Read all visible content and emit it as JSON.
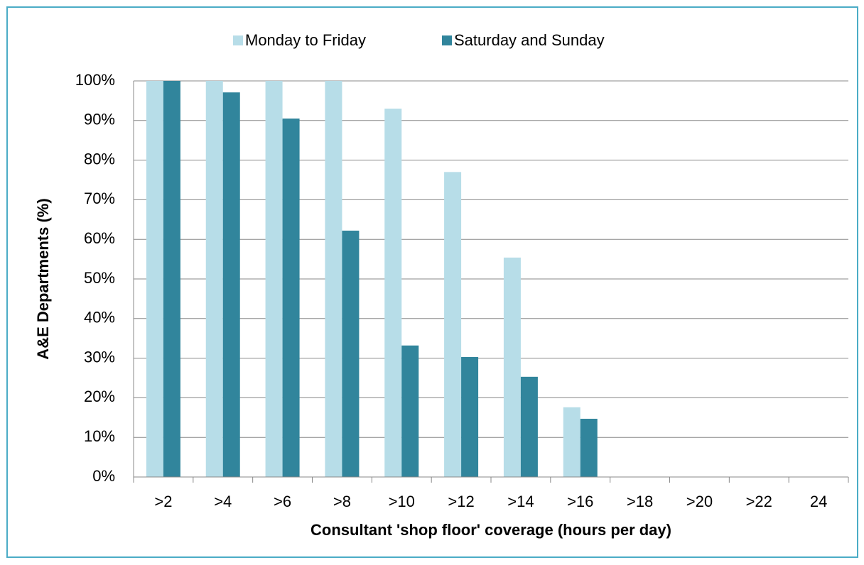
{
  "chart_data": {
    "type": "bar",
    "xlabel": "Consultant 'shop floor' coverage (hours per day)",
    "ylabel": "A&E Departments (%)",
    "categories": [
      ">2",
      ">4",
      ">6",
      ">8",
      ">10",
      ">12",
      ">14",
      ">16",
      ">18",
      ">20",
      ">22",
      "24"
    ],
    "series": [
      {
        "name": "Monday to Friday",
        "color": "#b7dde8",
        "values": [
          100,
          100,
          100,
          100,
          93,
          77,
          55.4,
          17.6,
          0,
          0,
          0,
          0
        ]
      },
      {
        "name": "Saturday and Sunday",
        "color": "#31859c",
        "values": [
          100,
          97.1,
          90.5,
          62.2,
          33.2,
          30.3,
          25.3,
          14.7,
          0,
          0,
          0,
          0
        ]
      }
    ],
    "ylim": [
      0,
      100
    ],
    "yticks": [
      {
        "value": 0,
        "label": "0%"
      },
      {
        "value": 10,
        "label": "10%"
      },
      {
        "value": 20,
        "label": "20%"
      },
      {
        "value": 30,
        "label": "30%"
      },
      {
        "value": 40,
        "label": "40%"
      },
      {
        "value": 50,
        "label": "50%"
      },
      {
        "value": 60,
        "label": "60%"
      },
      {
        "value": 70,
        "label": "70%"
      },
      {
        "value": 80,
        "label": "80%"
      },
      {
        "value": 90,
        "label": "90%"
      },
      {
        "value": 100,
        "label": "100%"
      }
    ],
    "grid": true,
    "legend": "top"
  }
}
